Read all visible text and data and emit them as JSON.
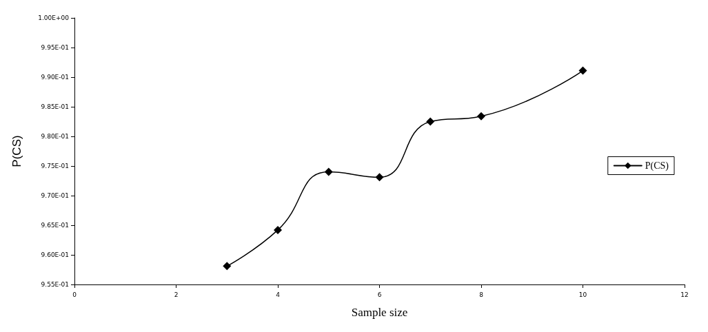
{
  "chart_data": {
    "type": "line",
    "xlabel": "Sample size",
    "ylabel": "P(CS)",
    "series": [
      {
        "name": "P(CS)",
        "color": "#000000",
        "x": [
          3,
          4,
          5,
          6,
          7,
          8,
          10
        ],
        "values": [
          0.9581,
          0.9642,
          0.974,
          0.9731,
          0.9825,
          0.9834,
          0.9911
        ]
      }
    ],
    "xlim": [
      0,
      12
    ],
    "xticks": [
      0,
      2,
      4,
      6,
      8,
      10,
      12
    ],
    "ylim": [
      0.955,
      1.0
    ],
    "yticks": [
      {
        "value": 0.955,
        "label": "9.55E-01"
      },
      {
        "value": 0.96,
        "label": "9.60E-01"
      },
      {
        "value": 0.965,
        "label": "9.65E-01"
      },
      {
        "value": 0.97,
        "label": "9.70E-01"
      },
      {
        "value": 0.975,
        "label": "9.75E-01"
      },
      {
        "value": 0.98,
        "label": "9.80E-01"
      },
      {
        "value": 0.985,
        "label": "9.85E-01"
      },
      {
        "value": 0.99,
        "label": "9.90E-01"
      },
      {
        "value": 0.995,
        "label": "9.95E-01"
      },
      {
        "value": 1.0,
        "label": "1.00E+00"
      }
    ],
    "grid": false,
    "legend": "right",
    "marker": "diamond",
    "line_style": "solid"
  }
}
